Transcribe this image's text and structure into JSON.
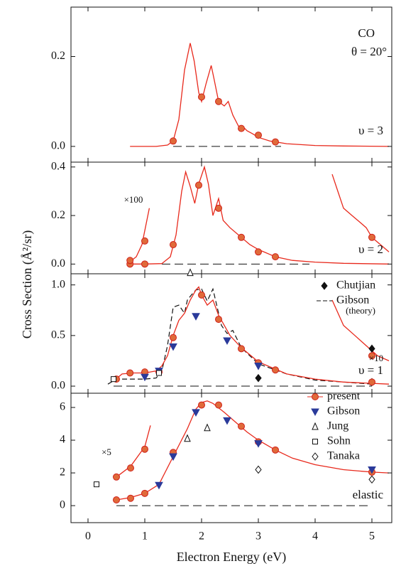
{
  "chart_data": [
    {
      "type": "line",
      "ylim": [
        -0.035,
        0.31
      ],
      "yticks": [
        {
          "value": 0,
          "label": "0.0"
        },
        {
          "value": 0.2,
          "label": "0.2"
        }
      ],
      "annotations": [
        "CO",
        "θ = 20°",
        "υ = 3"
      ],
      "baseline": {
        "x": [
          1.5,
          3.4
        ],
        "values": [
          0,
          0
        ]
      },
      "series": [
        {
          "style": "line",
          "color": "#e8291c",
          "x": [
            0.74,
            1.2,
            1.4,
            1.5,
            1.6,
            1.7,
            1.8,
            1.87,
            1.95,
            2.0,
            2.08,
            2.17,
            2.22,
            2.3,
            2.4,
            2.47,
            2.55,
            2.65,
            2.72,
            2.8,
            2.9,
            3.0,
            3.2,
            3.5,
            4.0,
            4.5,
            5.3
          ],
          "values": [
            0,
            0,
            0.003,
            0.012,
            0.06,
            0.17,
            0.23,
            0.19,
            0.12,
            0.1,
            0.14,
            0.18,
            0.15,
            0.1,
            0.09,
            0.1,
            0.07,
            0.045,
            0.045,
            0.035,
            0.028,
            0.02,
            0.012,
            0.006,
            0.002,
            0.001,
            0
          ]
        },
        {
          "style": "circle",
          "color": "#e06a3a",
          "x": [
            1.5,
            2.0,
            2.3,
            2.7,
            3.0,
            3.3
          ],
          "values": [
            0.012,
            0.11,
            0.1,
            0.04,
            0.025,
            0.01
          ]
        }
      ]
    },
    {
      "type": "line",
      "ylim": [
        -0.04,
        0.42
      ],
      "yticks": [
        {
          "value": 0,
          "label": "0.0"
        },
        {
          "value": 0.2,
          "label": "0.2"
        },
        {
          "value": 0.4,
          "label": "0.4"
        }
      ],
      "annotations": [
        "×100",
        "υ = 2"
      ],
      "baseline": {
        "x": [
          1.3,
          3.9
        ],
        "values": [
          0,
          0
        ]
      },
      "series": [
        {
          "style": "line",
          "color": "#e8291c",
          "x": [
            0.73,
            1.0,
            1.3,
            1.45,
            1.55,
            1.65,
            1.72,
            1.8,
            1.88,
            1.95,
            2.05,
            2.12,
            2.2,
            2.3,
            2.38,
            2.5,
            2.7,
            2.85,
            3.0,
            3.3,
            3.6,
            4.0,
            4.5,
            5.3
          ],
          "values": [
            0,
            0,
            0.002,
            0.03,
            0.12,
            0.3,
            0.38,
            0.32,
            0.25,
            0.33,
            0.4,
            0.33,
            0.2,
            0.27,
            0.18,
            0.15,
            0.11,
            0.08,
            0.06,
            0.03,
            0.015,
            0.008,
            0.003,
            0
          ]
        },
        {
          "style": "line",
          "color": "#e8291c",
          "x": [
            0.74,
            0.85,
            0.95,
            1.08
          ],
          "values": [
            0.01,
            0.03,
            0.08,
            0.23
          ]
        },
        {
          "style": "line",
          "color": "#e8291c",
          "x": [
            4.3,
            4.4,
            4.5,
            4.65,
            4.8,
            4.9,
            5.0,
            5.15,
            5.3
          ],
          "values": [
            0.37,
            0.3,
            0.23,
            0.2,
            0.17,
            0.15,
            0.11,
            0.08,
            0.05
          ]
        },
        {
          "style": "circle",
          "color": "#e06a3a",
          "x": [
            0.74,
            1.0,
            1.5,
            1.95,
            2.3,
            2.7,
            3.0,
            3.3,
            0.74,
            1.0,
            5.0
          ],
          "values": [
            0,
            0,
            0.08,
            0.325,
            0.23,
            0.11,
            0.05,
            0.03,
            0.015,
            0.095,
            0.11
          ]
        }
      ]
    },
    {
      "type": "line",
      "ylim": [
        -0.07,
        1.11
      ],
      "yticks": [
        {
          "value": 0,
          "label": "0.0"
        },
        {
          "value": 0.5,
          "label": "0.5"
        },
        {
          "value": 1,
          "label": "1.0"
        }
      ],
      "annotations": [
        "×10",
        "υ = 1",
        "(theory)"
      ],
      "baseline": {
        "x": [
          0.45,
          5.0
        ],
        "values": [
          0,
          0
        ]
      },
      "series": [
        {
          "name": "Chutjian",
          "style": "diamond",
          "color": "#111111",
          "x": [
            3.0,
            5.0,
            5.0
          ],
          "values": [
            0.08,
            0.37,
            0.04
          ]
        },
        {
          "name": "Gibson",
          "style": "dashed",
          "color": "#111111",
          "x": [
            0.35,
            0.5,
            1.0,
            1.2,
            1.3,
            1.4,
            1.5,
            1.6,
            1.7,
            1.75,
            1.82,
            1.9,
            2.0,
            2.1,
            2.2,
            2.35,
            2.45,
            2.55,
            2.7,
            3.0,
            3.5,
            4.0,
            4.5,
            5.0
          ],
          "values": [
            0.02,
            0.07,
            0.07,
            0.08,
            0.15,
            0.4,
            0.78,
            0.8,
            0.72,
            0.85,
            0.9,
            0.95,
            0.96,
            0.84,
            0.96,
            0.6,
            0.52,
            0.55,
            0.38,
            0.22,
            0.12,
            0.06,
            0.04,
            0.02
          ]
        },
        {
          "style": "line",
          "color": "#e8291c",
          "x": [
            0.45,
            0.6,
            0.8,
            1.0,
            1.2,
            1.3,
            1.4,
            1.5,
            1.6,
            1.7,
            1.8,
            1.9,
            1.95,
            2.0,
            2.1,
            2.2,
            2.3,
            2.4,
            2.5,
            2.7,
            3.0,
            3.5,
            4.0,
            4.5,
            5.3
          ],
          "values": [
            0.05,
            0.12,
            0.13,
            0.13,
            0.15,
            0.2,
            0.3,
            0.5,
            0.65,
            0.72,
            0.85,
            0.95,
            0.98,
            0.9,
            0.8,
            0.85,
            0.7,
            0.6,
            0.5,
            0.38,
            0.24,
            0.12,
            0.07,
            0.04,
            0.02
          ]
        },
        {
          "style": "line",
          "color": "#e8291c",
          "x": [
            4.3,
            4.5,
            4.7,
            4.9,
            5.1,
            5.3
          ],
          "values": [
            0.85,
            0.6,
            0.5,
            0.4,
            0.3,
            0.25
          ]
        },
        {
          "style": "circle",
          "color": "#e06a3a",
          "x": [
            0.5,
            0.74,
            1.0,
            1.25,
            1.5,
            2.0,
            2.3,
            2.7,
            3.0,
            3.3,
            5.0,
            5.0
          ],
          "values": [
            0.07,
            0.13,
            0.14,
            0.14,
            0.48,
            0.9,
            0.66,
            0.37,
            0.23,
            0.16,
            0.04,
            0.3
          ]
        },
        {
          "style": "down-triangle",
          "color": "#2a3a9a",
          "x": [
            1.0,
            1.25,
            1.5,
            1.9,
            2.45,
            3.0
          ],
          "values": [
            0.09,
            0.15,
            0.39,
            0.69,
            0.45,
            0.2
          ]
        },
        {
          "style": "up-triangle-open",
          "color": "#111111",
          "x": [
            1.8
          ],
          "values": [
            1.12
          ]
        },
        {
          "style": "square-open",
          "color": "#111111",
          "x": [
            0.45,
            1.25
          ],
          "values": [
            0.07,
            0.13
          ]
        }
      ]
    },
    {
      "type": "line",
      "ylim": [
        -1.04,
        6.87
      ],
      "yticks": [
        0,
        2,
        4,
        6
      ],
      "xlim": [
        -0.3,
        5.35
      ],
      "xticks": [
        0,
        1,
        2,
        3,
        4,
        5
      ],
      "xlabel": "Electron Energy (eV)",
      "ylabel": "Cross Section (Å²/sr)",
      "annotations": [
        "×5",
        "elastic"
      ],
      "baseline": {
        "x": [
          0.5,
          5.0
        ],
        "values": [
          0,
          0
        ]
      },
      "series": [
        {
          "style": "line",
          "color": "#e8291c",
          "x": [
            0.5,
            0.75,
            1.0,
            1.25,
            1.5,
            1.75,
            1.9,
            2.0,
            2.1,
            2.2,
            2.4,
            2.6,
            2.8,
            3.0,
            3.3,
            3.6,
            4.0,
            4.5,
            5.0,
            5.3
          ],
          "values": [
            0.35,
            0.5,
            0.75,
            1.3,
            3.0,
            4.7,
            5.9,
            6.3,
            6.4,
            6.25,
            5.7,
            5.1,
            4.5,
            4.0,
            3.4,
            2.9,
            2.5,
            2.2,
            2.05,
            2.0
          ]
        },
        {
          "style": "line",
          "color": "#e8291c",
          "x": [
            0.5,
            0.75,
            1.0,
            1.1
          ],
          "values": [
            1.75,
            2.4,
            3.6,
            4.9
          ]
        },
        {
          "name": "present",
          "style": "circle",
          "color": "#e06a3a",
          "x": [
            0.5,
            0.75,
            1.0,
            1.5,
            2.0,
            2.3,
            2.7,
            3.0,
            3.3,
            5.0,
            0.5,
            0.75,
            1.0
          ],
          "values": [
            0.35,
            0.45,
            0.75,
            3.25,
            6.15,
            6.15,
            4.85,
            3.9,
            3.4,
            2.05,
            1.75,
            2.3,
            3.45
          ]
        },
        {
          "name": "Gibson",
          "style": "down-triangle",
          "color": "#2a3a9a",
          "x": [
            1.25,
            1.5,
            1.9,
            2.45,
            3.0,
            5.0
          ],
          "values": [
            1.25,
            3.0,
            5.7,
            5.2,
            3.8,
            2.2
          ]
        },
        {
          "name": "Jung",
          "style": "up-triangle-open",
          "color": "#111111",
          "x": [
            1.75,
            2.1
          ],
          "values": [
            4.1,
            4.75
          ]
        },
        {
          "name": "Sohn",
          "style": "square-open",
          "color": "#111111",
          "x": [
            0.15
          ],
          "values": [
            1.3
          ]
        },
        {
          "name": "Tanaka",
          "style": "diamond-open",
          "color": "#111111",
          "x": [
            3.0,
            5.0
          ],
          "values": [
            2.2,
            1.6
          ]
        }
      ]
    }
  ]
}
